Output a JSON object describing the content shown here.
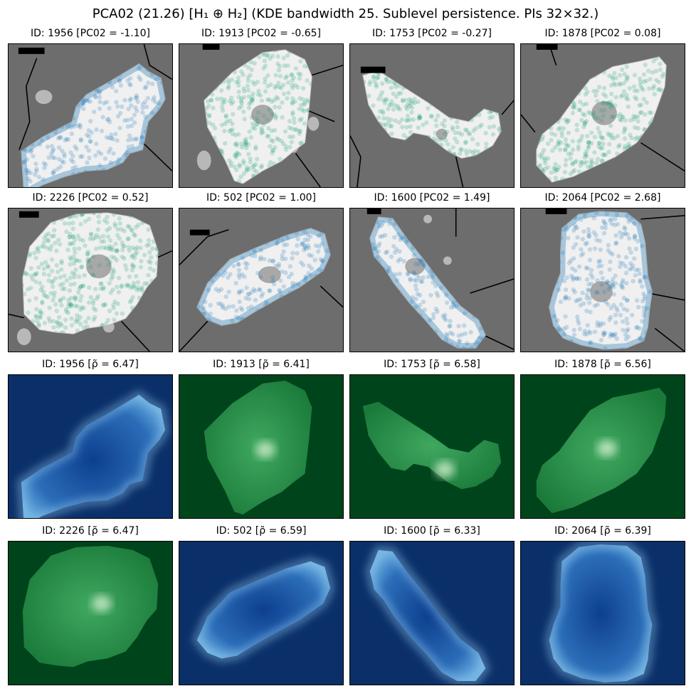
{
  "figure": {
    "title": "PCA02 (21.26) [H₁ ⊕ H₂] (KDE bandwidth 25. Sublevel persistence. PIs 32×32.)"
  },
  "colors": {
    "background_grey": "#6d6d6d",
    "cell_fill": "#f0f0f0",
    "nucleus": "#a8a8a8",
    "blue_points": "#1f77b4",
    "green_points": "#1b9e77",
    "kde_blue_bg": "#0b3069",
    "kde_green_bg": "#00441b"
  },
  "rows": [
    {
      "row_type": "point-cloud",
      "panels": [
        {
          "title": "ID: 1956 [PC02 = -1.10]",
          "cmap": "blue"
        },
        {
          "title": "ID: 1913 [PC02 = -0.65]",
          "cmap": "green"
        },
        {
          "title": "ID: 1753 [PC02 = -0.27]",
          "cmap": "green"
        },
        {
          "title": "ID: 1878 [PC02 = 0.08]",
          "cmap": "green"
        }
      ]
    },
    {
      "row_type": "point-cloud",
      "panels": [
        {
          "title": "ID: 2226 [PC02 = 0.52]",
          "cmap": "green"
        },
        {
          "title": "ID: 502 [PC02 = 1.00]",
          "cmap": "blue"
        },
        {
          "title": "ID: 1600 [PC02 = 1.49]",
          "cmap": "blue"
        },
        {
          "title": "ID: 2064 [PC02 = 2.68]",
          "cmap": "blue"
        }
      ]
    },
    {
      "row_type": "kde",
      "panels": [
        {
          "title": "ID: 1956 [ρ̃ = 6.47]",
          "cmap": "blue"
        },
        {
          "title": "ID: 1913 [ρ̃ = 6.41]",
          "cmap": "green"
        },
        {
          "title": "ID: 1753 [ρ̃ = 6.58]",
          "cmap": "green"
        },
        {
          "title": "ID: 1878 [ρ̃ = 6.56]",
          "cmap": "green"
        }
      ]
    },
    {
      "row_type": "kde",
      "panels": [
        {
          "title": "ID: 2226 [ρ̃ = 6.47]",
          "cmap": "green"
        },
        {
          "title": "ID: 502 [ρ̃ = 6.59]",
          "cmap": "blue"
        },
        {
          "title": "ID: 1600 [ρ̃ = 6.33]",
          "cmap": "blue"
        },
        {
          "title": "ID: 2064 [ρ̃ = 6.39]",
          "cmap": "blue"
        }
      ]
    }
  ]
}
